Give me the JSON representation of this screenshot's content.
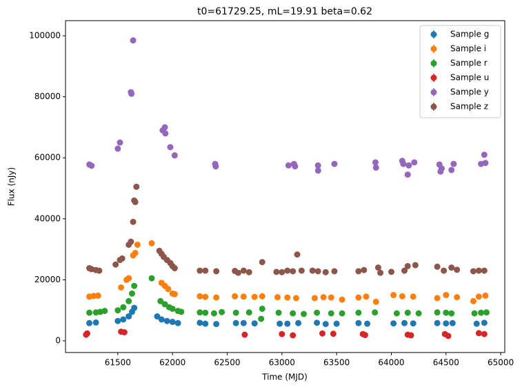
{
  "chart_data": {
    "type": "errorbar-scatter",
    "title": "t0=61729.25, mL=19.91 beta=0.62",
    "x_label": "Time (MJD)",
    "y_label": "Flux (nJy)",
    "xlim": [
      61022,
      65037
    ],
    "ylim": [
      -3840,
      104970
    ],
    "xticks": [
      61500,
      62000,
      62500,
      63000,
      63500,
      64000,
      64500,
      65000
    ],
    "yticks": [
      0,
      20000,
      40000,
      60000,
      80000,
      100000
    ],
    "legend": "upper right",
    "series": [
      {
        "name": "Sample g",
        "color": "#1f77b4",
        "x": [
          61240,
          61300,
          61500,
          61550,
          61600,
          61630,
          61650,
          61860,
          61900,
          61950,
          62000,
          62050,
          62250,
          62300,
          62400,
          62580,
          62650,
          62750,
          62980,
          63050,
          63150,
          63320,
          63400,
          63500,
          63700,
          63780,
          64020,
          64120,
          64200,
          64420,
          64500,
          64560,
          64780,
          64850
        ],
        "values": [
          5800,
          6000,
          6500,
          7000,
          8000,
          9500,
          10800,
          8000,
          7000,
          6500,
          6200,
          5800,
          5900,
          5600,
          5500,
          5800,
          5800,
          5700,
          5600,
          5600,
          5800,
          5900,
          5500,
          5600,
          5800,
          5600,
          5700,
          5800,
          5700,
          5800,
          5700,
          5800,
          5600,
          5900
        ]
      },
      {
        "name": "Sample i",
        "color": "#ff7f0e",
        "x": [
          61240,
          61280,
          61320,
          61530,
          61580,
          61600,
          61640,
          61660,
          61680,
          61810,
          61900,
          61930,
          61960,
          62000,
          62020,
          62250,
          62300,
          62400,
          62570,
          62650,
          62750,
          62820,
          62960,
          63050,
          63130,
          63300,
          63380,
          63450,
          63550,
          63700,
          63770,
          63860,
          64020,
          64100,
          64200,
          64420,
          64500,
          64600,
          64750,
          64800,
          64860
        ],
        "values": [
          14500,
          14700,
          14800,
          17500,
          20000,
          20500,
          28000,
          28800,
          31500,
          32000,
          19000,
          18000,
          17000,
          15500,
          15300,
          14600,
          14400,
          14200,
          14600,
          14500,
          14400,
          14600,
          14300,
          14200,
          14000,
          14000,
          14300,
          14200,
          13500,
          14200,
          14500,
          12800,
          15000,
          14600,
          14500,
          14000,
          15000,
          14300,
          13000,
          14500,
          14800
        ]
      },
      {
        "name": "Sample r",
        "color": "#2ca02c",
        "x": [
          61240,
          61300,
          61340,
          61380,
          61500,
          61550,
          61600,
          61630,
          61650,
          61810,
          61890,
          61930,
          61970,
          62000,
          62050,
          62080,
          62250,
          62300,
          62380,
          62450,
          62580,
          62700,
          62820,
          62810,
          62970,
          63100,
          63200,
          63320,
          63450,
          63550,
          63700,
          63850,
          64050,
          64150,
          64250,
          64420,
          64500,
          64550,
          64760,
          64820,
          64870
        ],
        "values": [
          9200,
          9300,
          9500,
          9800,
          10000,
          11000,
          13000,
          15500,
          18000,
          20500,
          13000,
          12000,
          11000,
          10500,
          9800,
          9500,
          9300,
          9200,
          9000,
          9400,
          9200,
          9300,
          10500,
          7200,
          9200,
          9000,
          8800,
          9200,
          9000,
          9000,
          9200,
          9300,
          9000,
          9200,
          9000,
          9300,
          9200,
          9000,
          9000,
          9200,
          9300
        ]
      },
      {
        "name": "Sample u",
        "color": "#d62728",
        "x": [
          61210,
          61220,
          61530,
          61560,
          62660,
          63000,
          63100,
          63370,
          63470,
          63740,
          63760,
          64150,
          64180,
          64490,
          64520,
          64800,
          64850
        ],
        "values": [
          2000,
          2400,
          3000,
          2800,
          2000,
          2200,
          1800,
          2400,
          2300,
          2200,
          1900,
          2000,
          1800,
          2200,
          1600,
          2500,
          2200
        ]
      },
      {
        "name": "Sample y",
        "color": "#9467bd",
        "x": [
          61240,
          61260,
          61500,
          61520,
          61620,
          61625,
          61640,
          61910,
          61930,
          61935,
          61980,
          62020,
          62390,
          62395,
          63060,
          63110,
          63120,
          63330,
          63331,
          63480,
          63855,
          63860,
          64100,
          64110,
          64150,
          64160,
          64210,
          64440,
          64450,
          64460,
          64550,
          64570,
          64820,
          64850,
          64860
        ],
        "values": [
          57800,
          57400,
          63000,
          65000,
          81500,
          81000,
          98500,
          69000,
          70000,
          68000,
          63500,
          60800,
          58000,
          57200,
          57500,
          58000,
          57200,
          57500,
          55800,
          58000,
          58500,
          56800,
          59000,
          58000,
          54500,
          57500,
          58500,
          57800,
          55500,
          56500,
          56000,
          58000,
          58000,
          61000,
          58300
        ]
      },
      {
        "name": "Sample z",
        "color": "#8c564b",
        "x": [
          61240,
          61260,
          61300,
          61330,
          61480,
          61520,
          61540,
          61600,
          61620,
          61640,
          61650,
          61660,
          61670,
          61880,
          61900,
          61920,
          61950,
          61980,
          62000,
          62020,
          62250,
          62300,
          62400,
          62570,
          62600,
          62650,
          62700,
          62820,
          62950,
          63000,
          63050,
          63100,
          63140,
          63180,
          63280,
          63330,
          63400,
          63480,
          63700,
          63750,
          63880,
          63900,
          64000,
          64120,
          64150,
          64220,
          64420,
          64480,
          64550,
          64600,
          64750,
          64800,
          64850
        ],
        "values": [
          23800,
          23500,
          23200,
          23000,
          25000,
          26500,
          27000,
          31500,
          32500,
          39000,
          46000,
          45500,
          50500,
          29500,
          28500,
          27500,
          26500,
          25500,
          24500,
          23800,
          23000,
          23000,
          22800,
          22900,
          22300,
          23000,
          22500,
          25800,
          22600,
          22500,
          23000,
          22800,
          28300,
          23000,
          23000,
          22800,
          22500,
          22800,
          22800,
          23200,
          24000,
          22300,
          22600,
          23000,
          24500,
          24800,
          24300,
          23000,
          24000,
          23300,
          22800,
          23000,
          23000
        ]
      }
    ]
  }
}
